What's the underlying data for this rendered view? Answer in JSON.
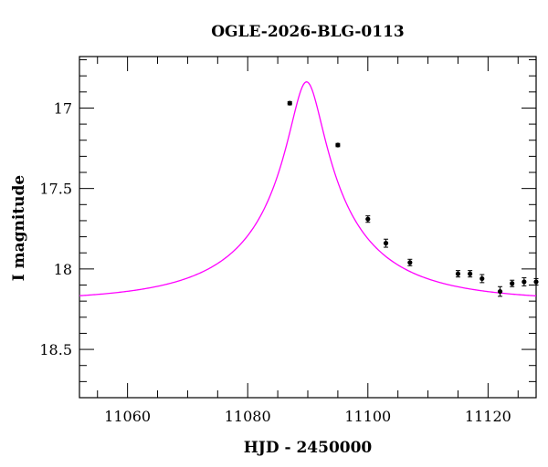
{
  "chart_data": {
    "type": "scatter",
    "title": "OGLE-2026-BLG-0113",
    "xlabel": "HJD - 2450000",
    "ylabel": "I magnitude",
    "xlim": [
      11052,
      11128
    ],
    "ylim": [
      18.8,
      16.68
    ],
    "y_inverted": true,
    "grid": false,
    "x_major_ticks": [
      11060,
      11080,
      11100,
      11120
    ],
    "x_minor_step": 5,
    "y_major_ticks": [
      17,
      17.5,
      18,
      18.5
    ],
    "y_minor_step": 0.1,
    "colors": {
      "model": "#ff00ff",
      "points": "#000000",
      "axes": "#000000"
    },
    "model": {
      "name": "",
      "description_free": true,
      "t0": 11089.8,
      "u0": 0.12,
      "tE": 22.0,
      "fs": 0.34,
      "fb": 0.66,
      "baseline_mag": 18.2
    },
    "series": [
      {
        "name": "",
        "x": [
          11087.0,
          11095.0,
          11100.0,
          11103.0,
          11107.0,
          11115.0,
          11117.0,
          11119.0,
          11122.0,
          11124.0,
          11126.0,
          11128.0
        ],
        "y": [
          16.97,
          17.23,
          17.69,
          17.84,
          17.96,
          18.03,
          18.03,
          18.06,
          18.14,
          18.09,
          18.08,
          18.08
        ],
        "yerr": [
          0.01,
          0.01,
          0.02,
          0.025,
          0.02,
          0.02,
          0.02,
          0.025,
          0.03,
          0.02,
          0.025,
          0.02
        ]
      }
    ]
  }
}
